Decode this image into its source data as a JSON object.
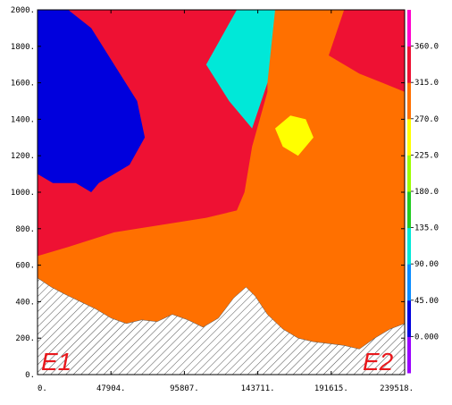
{
  "chart_data": {
    "type": "filled-contour",
    "x_ticks": [
      "0.",
      "47904.",
      "95807.",
      "143711.",
      "191615.",
      "239518."
    ],
    "y_ticks": [
      "0.",
      "200.",
      "400.",
      "600.",
      "800.",
      "1000.",
      "1200.",
      "1400.",
      "1600.",
      "1800.",
      "2000."
    ],
    "xlim": [
      0,
      239518
    ],
    "ylim": [
      0,
      2000
    ],
    "colorbar": {
      "labels": [
        "0.000",
        "45.00",
        "90.00",
        "135.0",
        "180.0",
        "225.0",
        "270.0",
        "315.0",
        "360.0"
      ],
      "colors": [
        "#9a00ff",
        "#0000dd",
        "#0a8cff",
        "#00e8d8",
        "#22cc22",
        "#9cff00",
        "#ffff00",
        "#ff7000",
        "#ee1133",
        "#ff00cc"
      ]
    },
    "corner_labels": {
      "left": "E1",
      "right": "E2"
    },
    "terrain": {
      "x": [
        0,
        9000,
        18000,
        28000,
        38000,
        48000,
        58000,
        68000,
        78000,
        88000,
        98000,
        108000,
        118000,
        128000,
        136000,
        142000,
        150000,
        160000,
        170000,
        180000,
        190000,
        200000,
        210000,
        220000,
        230000,
        239518
      ],
      "y": [
        530,
        480,
        440,
        400,
        360,
        310,
        280,
        300,
        290,
        330,
        300,
        260,
        310,
        420,
        480,
        430,
        330,
        250,
        200,
        180,
        170,
        160,
        140,
        200,
        250,
        280
      ]
    },
    "regions": [
      {
        "value": "270-315",
        "x": [
          0,
          239518,
          239518,
          0
        ],
        "y": [
          600,
          600,
          2000,
          2000
        ]
      },
      {
        "value": "315-360",
        "x": [
          0,
          20000,
          50000,
          80000,
          110000,
          130000,
          135000,
          140000,
          145000,
          150000,
          150000,
          130000,
          90000,
          60000,
          30000,
          0
        ],
        "y": [
          650,
          700,
          780,
          820,
          860,
          900,
          1000,
          1250,
          1400,
          1550,
          2000,
          2000,
          2000,
          2000,
          2000,
          2000
        ]
      },
      {
        "value": "315-360",
        "x": [
          190000,
          210000,
          225000,
          239518,
          239518,
          200000
        ],
        "y": [
          1750,
          1650,
          1600,
          1550,
          2000,
          2000
        ]
      },
      {
        "value": "0-45",
        "x": [
          0,
          10000,
          25000,
          35000,
          40000,
          50000,
          60000,
          70000,
          65000,
          50000,
          35000,
          20000,
          10000,
          0
        ],
        "y": [
          1100,
          1050,
          1050,
          1000,
          1050,
          1100,
          1150,
          1300,
          1500,
          1700,
          1900,
          2000,
          2000,
          2000
        ]
      },
      {
        "value": "90-135",
        "x": [
          110000,
          125000,
          140000,
          150000,
          155000,
          150000,
          130000
        ],
        "y": [
          1700,
          1500,
          1350,
          1600,
          2000,
          2000,
          2000
        ]
      },
      {
        "value": "225-270",
        "x": [
          155000,
          165000,
          175000,
          180000,
          170000,
          160000
        ],
        "y": [
          1350,
          1420,
          1400,
          1300,
          1200,
          1250
        ]
      }
    ]
  }
}
